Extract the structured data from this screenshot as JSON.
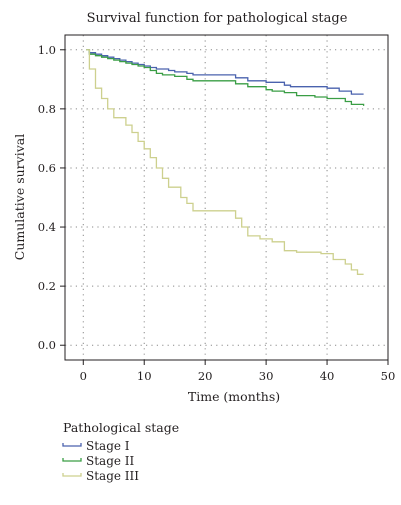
{
  "chart_data": {
    "type": "line",
    "step": true,
    "title": "Survival function for pathological stage",
    "xlabel": "Time (months)",
    "ylabel": "Cumulative survival",
    "xlim": [
      -3,
      50
    ],
    "ylim": [
      -0.05,
      1.05
    ],
    "xticks": [
      0,
      10,
      20,
      30,
      40,
      50
    ],
    "yticks": [
      0.0,
      0.2,
      0.4,
      0.6,
      0.8,
      1.0
    ],
    "xtick_labels": [
      "0",
      "10",
      "20",
      "30",
      "40",
      "50"
    ],
    "ytick_labels": [
      "0.0",
      "0.2",
      "0.4",
      "0.6",
      "0.8",
      "1.0"
    ],
    "grid": true,
    "legend": {
      "title": "Pathological stage",
      "placement": "bottom-left"
    },
    "series": [
      {
        "name": "Stage I",
        "color": "#4a62ae",
        "x": [
          0.5,
          1,
          2,
          3,
          4,
          5,
          6,
          7,
          8,
          9,
          10,
          11,
          12,
          14,
          15,
          17,
          18,
          25,
          27,
          30,
          33,
          34,
          40,
          42,
          44,
          46
        ],
        "y": [
          1.0,
          0.99,
          0.985,
          0.98,
          0.975,
          0.97,
          0.965,
          0.96,
          0.955,
          0.95,
          0.945,
          0.94,
          0.935,
          0.93,
          0.925,
          0.92,
          0.915,
          0.905,
          0.895,
          0.89,
          0.88,
          0.875,
          0.87,
          0.86,
          0.85,
          0.85
        ]
      },
      {
        "name": "Stage II",
        "color": "#3a9e45",
        "x": [
          0.5,
          1,
          2,
          3,
          4,
          5,
          6,
          7,
          8,
          9,
          10,
          11,
          12,
          13,
          15,
          17,
          18,
          25,
          27,
          30,
          31,
          33,
          35,
          38,
          40,
          43,
          44,
          46
        ],
        "y": [
          1.0,
          0.985,
          0.98,
          0.975,
          0.97,
          0.965,
          0.96,
          0.955,
          0.95,
          0.945,
          0.94,
          0.93,
          0.92,
          0.915,
          0.91,
          0.9,
          0.895,
          0.885,
          0.875,
          0.865,
          0.86,
          0.855,
          0.845,
          0.84,
          0.835,
          0.825,
          0.815,
          0.81
        ]
      },
      {
        "name": "Stage III",
        "color": "#cdd08e",
        "x": [
          0.5,
          1,
          2,
          3,
          4,
          5,
          7,
          8,
          9,
          10,
          11,
          12,
          13,
          14,
          16,
          17,
          18,
          25,
          26,
          27,
          29,
          31,
          33,
          35,
          39,
          41,
          43,
          44,
          45,
          46
        ],
        "y": [
          1.0,
          0.935,
          0.87,
          0.835,
          0.8,
          0.77,
          0.745,
          0.72,
          0.69,
          0.665,
          0.635,
          0.6,
          0.565,
          0.535,
          0.5,
          0.48,
          0.455,
          0.43,
          0.4,
          0.37,
          0.36,
          0.35,
          0.32,
          0.315,
          0.31,
          0.29,
          0.275,
          0.255,
          0.24,
          0.24
        ]
      }
    ]
  }
}
